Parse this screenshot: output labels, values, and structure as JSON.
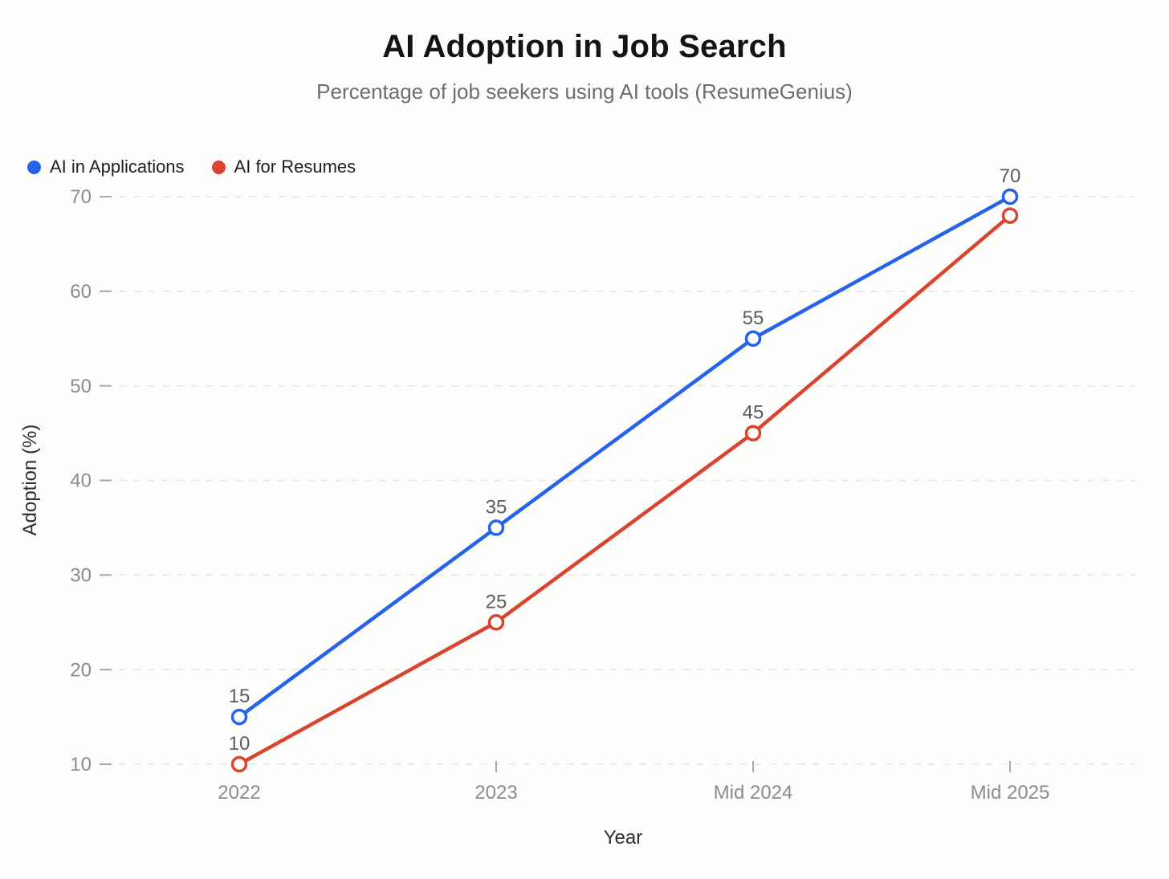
{
  "chart_data": {
    "type": "line",
    "title": "AI Adoption in Job Search",
    "subtitle": "Percentage of job seekers using AI tools (ResumeGenius)",
    "xlabel": "Year",
    "ylabel": "Adoption (%)",
    "categories": [
      "2022",
      "2023",
      "Mid 2024",
      "Mid 2025"
    ],
    "y_ticks": [
      10,
      20,
      30,
      40,
      50,
      60,
      70
    ],
    "ylim": [
      10,
      70
    ],
    "grid": "horizontal-dashed",
    "legend_position": "top-left",
    "series": [
      {
        "name": "AI in Applications",
        "color": "#2563eb",
        "values": [
          15,
          35,
          55,
          70
        ],
        "point_labels": [
          "15",
          "35",
          "55",
          "70"
        ]
      },
      {
        "name": "AI for Resumes",
        "color": "#d9442f",
        "values": [
          10,
          25,
          45,
          68
        ],
        "point_labels": [
          "10",
          "25",
          "45",
          ""
        ]
      }
    ]
  }
}
